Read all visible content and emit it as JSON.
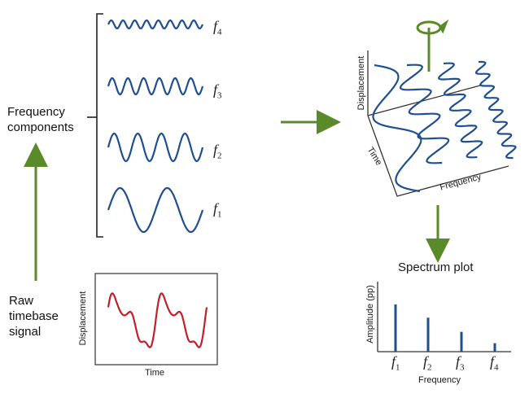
{
  "left": {
    "frequency_components": [
      "Frequency",
      "components"
    ],
    "raw_signal": [
      "Raw",
      "timebase",
      "signal"
    ]
  },
  "components": [
    {
      "label": "f",
      "sub": "4"
    },
    {
      "label": "f",
      "sub": "3"
    },
    {
      "label": "f",
      "sub": "2"
    },
    {
      "label": "f",
      "sub": "1"
    }
  ],
  "raw_plot": {
    "ylabel": "Displacement",
    "xlabel": "Time"
  },
  "plot3d": {
    "zlabel": "Displacement",
    "ylabel": "Time",
    "xlabel": "Frequency"
  },
  "spectrum": {
    "title": "Spectrum plot",
    "ylabel": "Amplitude (pp)",
    "xlabel": "Frequency",
    "ticks": [
      {
        "label": "f",
        "sub": "1"
      },
      {
        "label": "f",
        "sub": "2"
      },
      {
        "label": "f",
        "sub": "3"
      },
      {
        "label": "f",
        "sub": "4"
      }
    ],
    "amplitudes": [
      1.0,
      0.72,
      0.42,
      0.18
    ]
  },
  "colors": {
    "wave": "#1f4f8f",
    "signal": "#c0202a",
    "arrow": "#5b8a2a",
    "axis": "#333333"
  }
}
